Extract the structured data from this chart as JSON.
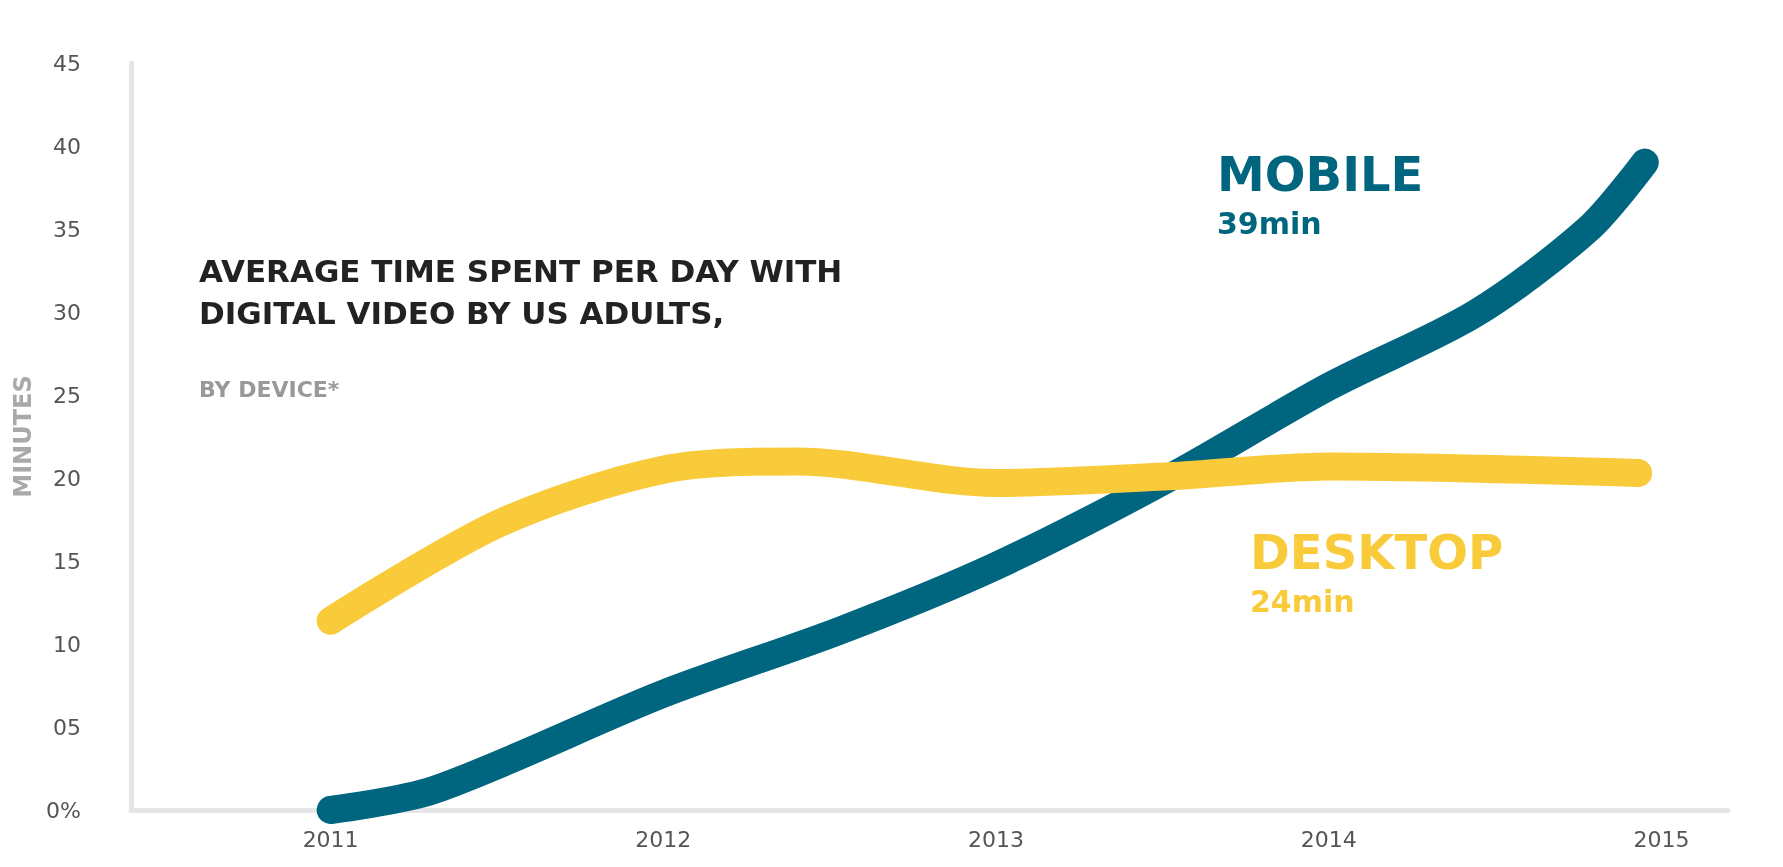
{
  "chart_data": {
    "type": "line",
    "title": "AVERAGE TIME SPENT PER DAY WITH\nDIGITAL VIDEO BY US ADULTS,",
    "subtitle": "BY DEVICE*",
    "ylabel": "MINUTES",
    "annotations": [
      "39min",
      "24min"
    ],
    "series": [
      {
        "name": "MOBILE",
        "color": "#006680",
        "x": [
          2011,
          2011.31,
          2012,
          2012.53,
          2013,
          2013.52,
          2014,
          2014.44,
          2014.78,
          2014.95
        ],
        "values": [
          0,
          1.2,
          7,
          10.8,
          14.7,
          20,
          25.5,
          29.9,
          35,
          39
        ]
      },
      {
        "name": "DESKTOP",
        "color": "#f9cb3a",
        "x": [
          2011,
          2011.51,
          2012,
          2012.4,
          2013,
          2013.52,
          2014,
          2014.93
        ],
        "values": [
          11.4,
          17.3,
          20.5,
          21,
          19.7,
          20.1,
          20.7,
          20.3
        ]
      }
    ],
    "xlim": [
      2010.4,
      2015.2
    ],
    "xticks": [
      2011,
      2012,
      2013,
      2014,
      2015
    ],
    "ylim": [
      0,
      45
    ],
    "yticks": [
      {
        "value": 0,
        "label": "0%"
      },
      {
        "value": 5,
        "label": "05"
      },
      10,
      15,
      20,
      25,
      30,
      35,
      40,
      45
    ],
    "grid": false,
    "legend": false,
    "marker": "none",
    "line_style": "solid"
  }
}
